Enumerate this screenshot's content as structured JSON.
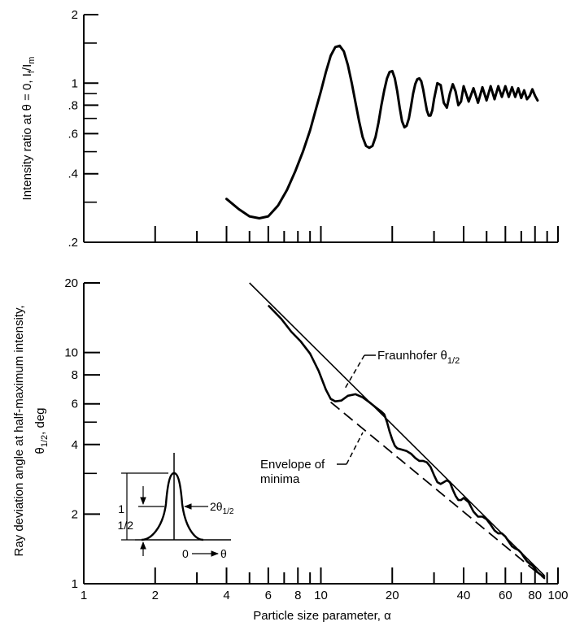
{
  "chart_data": [
    {
      "type": "line",
      "panel": "top",
      "ylabel": "Intensity ratio at θ = 0,  I_f/I_m",
      "ylabel_main": "Intensity ratio at θ = 0,  I",
      "ylabel_sub1": "f",
      "ylabel_mid": "/I",
      "ylabel_sub2": "m",
      "y_scale": "log",
      "ylim": [
        0.2,
        2
      ],
      "yticks": [
        {
          "value": 2,
          "label": "2"
        },
        {
          "value": 1,
          "label": "1"
        },
        {
          "value": 0.8,
          "label": ".8"
        },
        {
          "value": 0.6,
          "label": ".6"
        },
        {
          "value": 0.4,
          "label": ".4"
        },
        {
          "value": 0.2,
          "label": ".2"
        }
      ],
      "x_scale": "log",
      "xlim": [
        1,
        100
      ],
      "series": [
        {
          "x": [
            4,
            4.5,
            5,
            5.5,
            6,
            6.6,
            7.2,
            7.8,
            8.4,
            9,
            9.5,
            10,
            10.5,
            11,
            11.5,
            12,
            12.5,
            13,
            13.5,
            14,
            14.5,
            15,
            15.5,
            16,
            16.5,
            17,
            17.5,
            18,
            18.5,
            19,
            19.5,
            20,
            20.5,
            21,
            21.5,
            22,
            22.5,
            23,
            23.5,
            24,
            24.5,
            25,
            25.5,
            26,
            26.5,
            27,
            27.5,
            28,
            28.5,
            29,
            29.5,
            30,
            31,
            32,
            33,
            34,
            35,
            36,
            37,
            38,
            39,
            40,
            42,
            44,
            46,
            48,
            50,
            52,
            54,
            56,
            58,
            60,
            62,
            64,
            66,
            68,
            70,
            72,
            74,
            76,
            78,
            80,
            82
          ],
          "y": [
            0.31,
            0.28,
            0.26,
            0.255,
            0.26,
            0.29,
            0.34,
            0.41,
            0.5,
            0.62,
            0.76,
            0.92,
            1.12,
            1.32,
            1.44,
            1.46,
            1.38,
            1.2,
            1.0,
            0.82,
            0.68,
            0.58,
            0.53,
            0.52,
            0.53,
            0.58,
            0.67,
            0.8,
            0.93,
            1.05,
            1.12,
            1.13,
            1.05,
            0.92,
            0.78,
            0.68,
            0.64,
            0.65,
            0.7,
            0.79,
            0.9,
            0.99,
            1.04,
            1.05,
            1.02,
            0.94,
            0.84,
            0.76,
            0.72,
            0.72,
            0.76,
            0.85,
            1.0,
            0.98,
            0.82,
            0.78,
            0.9,
            0.99,
            0.92,
            0.8,
            0.83,
            0.97,
            0.83,
            0.95,
            0.82,
            0.96,
            0.84,
            0.97,
            0.85,
            0.97,
            0.87,
            0.97,
            0.87,
            0.96,
            0.87,
            0.95,
            0.86,
            0.93,
            0.85,
            0.88,
            0.94,
            0.88,
            0.84
          ]
        }
      ]
    },
    {
      "type": "line",
      "panel": "bottom",
      "ylabel_line1": "Ray deviation angle at half-maximum intensity,",
      "ylabel_line2_main": "θ",
      "ylabel_line2_sub": "1/2",
      "ylabel_line2_unit": ", deg",
      "xlabel": "Particle size parameter,  α",
      "x_scale": "log",
      "xlim": [
        1,
        100
      ],
      "xticks": [
        {
          "value": 1,
          "label": "1"
        },
        {
          "value": 2,
          "label": "2"
        },
        {
          "value": 4,
          "label": "4"
        },
        {
          "value": 6,
          "label": "6"
        },
        {
          "value": 8,
          "label": "8"
        },
        {
          "value": 10,
          "label": "10"
        },
        {
          "value": 20,
          "label": "20"
        },
        {
          "value": 40,
          "label": "40"
        },
        {
          "value": 60,
          "label": "60"
        },
        {
          "value": 80,
          "label": "80"
        },
        {
          "value": 100,
          "label": "100"
        }
      ],
      "y_scale": "log",
      "ylim": [
        1,
        20
      ],
      "yticks": [
        {
          "value": 20,
          "label": "20"
        },
        {
          "value": 10,
          "label": "10"
        },
        {
          "value": 8,
          "label": "8"
        },
        {
          "value": 6,
          "label": "6"
        },
        {
          "value": 4,
          "label": "4"
        },
        {
          "value": 2,
          "label": "2"
        },
        {
          "value": 1,
          "label": "1"
        }
      ],
      "series": [
        {
          "style": "solid-thin",
          "x": [
            5,
            88
          ],
          "y": [
            20,
            1.08
          ]
        },
        {
          "style": "solid-thick",
          "x": [
            6,
            6.8,
            7.5,
            8.2,
            9,
            9.8,
            10.5,
            11,
            11.5,
            12.2,
            13,
            14,
            15,
            16,
            17,
            18,
            18.5,
            19,
            19.5,
            20,
            20.5,
            21,
            22,
            23,
            24,
            25,
            26,
            27,
            28,
            29,
            30,
            31,
            32,
            33,
            34,
            35,
            36,
            37,
            38,
            39,
            40,
            42,
            44,
            46,
            48,
            50,
            52,
            54,
            56,
            58,
            60,
            62,
            64,
            66,
            68,
            70,
            72,
            74,
            76,
            78,
            80,
            82,
            85,
            88
          ],
          "y": [
            16,
            14,
            12.3,
            11.2,
            9.9,
            8.3,
            6.9,
            6.3,
            6.15,
            6.2,
            6.5,
            6.6,
            6.4,
            6.1,
            5.8,
            5.55,
            5.4,
            5.0,
            4.55,
            4.2,
            3.95,
            3.85,
            3.8,
            3.75,
            3.65,
            3.5,
            3.4,
            3.4,
            3.35,
            3.2,
            2.95,
            2.75,
            2.7,
            2.75,
            2.8,
            2.75,
            2.55,
            2.4,
            2.3,
            2.3,
            2.35,
            2.25,
            2.05,
            1.95,
            1.95,
            1.9,
            1.8,
            1.7,
            1.65,
            1.65,
            1.6,
            1.52,
            1.45,
            1.42,
            1.4,
            1.36,
            1.3,
            1.25,
            1.22,
            1.2,
            1.16,
            1.12,
            1.09,
            1.06
          ]
        },
        {
          "style": "dashed",
          "x": [
            11,
            88
          ],
          "y": [
            6.1,
            1.05
          ]
        }
      ],
      "annotations": {
        "fraunhofer_main": "Fraunhofer θ",
        "fraunhofer_sub": "1/2",
        "envelope_line1": "Envelope of",
        "envelope_line2": "minima"
      },
      "inset": {
        "label_1": "1",
        "label_half": "1/2",
        "label_2theta": "2θ",
        "label_2theta_sub": "1/2",
        "label_0": "0",
        "label_theta": "θ"
      }
    }
  ]
}
